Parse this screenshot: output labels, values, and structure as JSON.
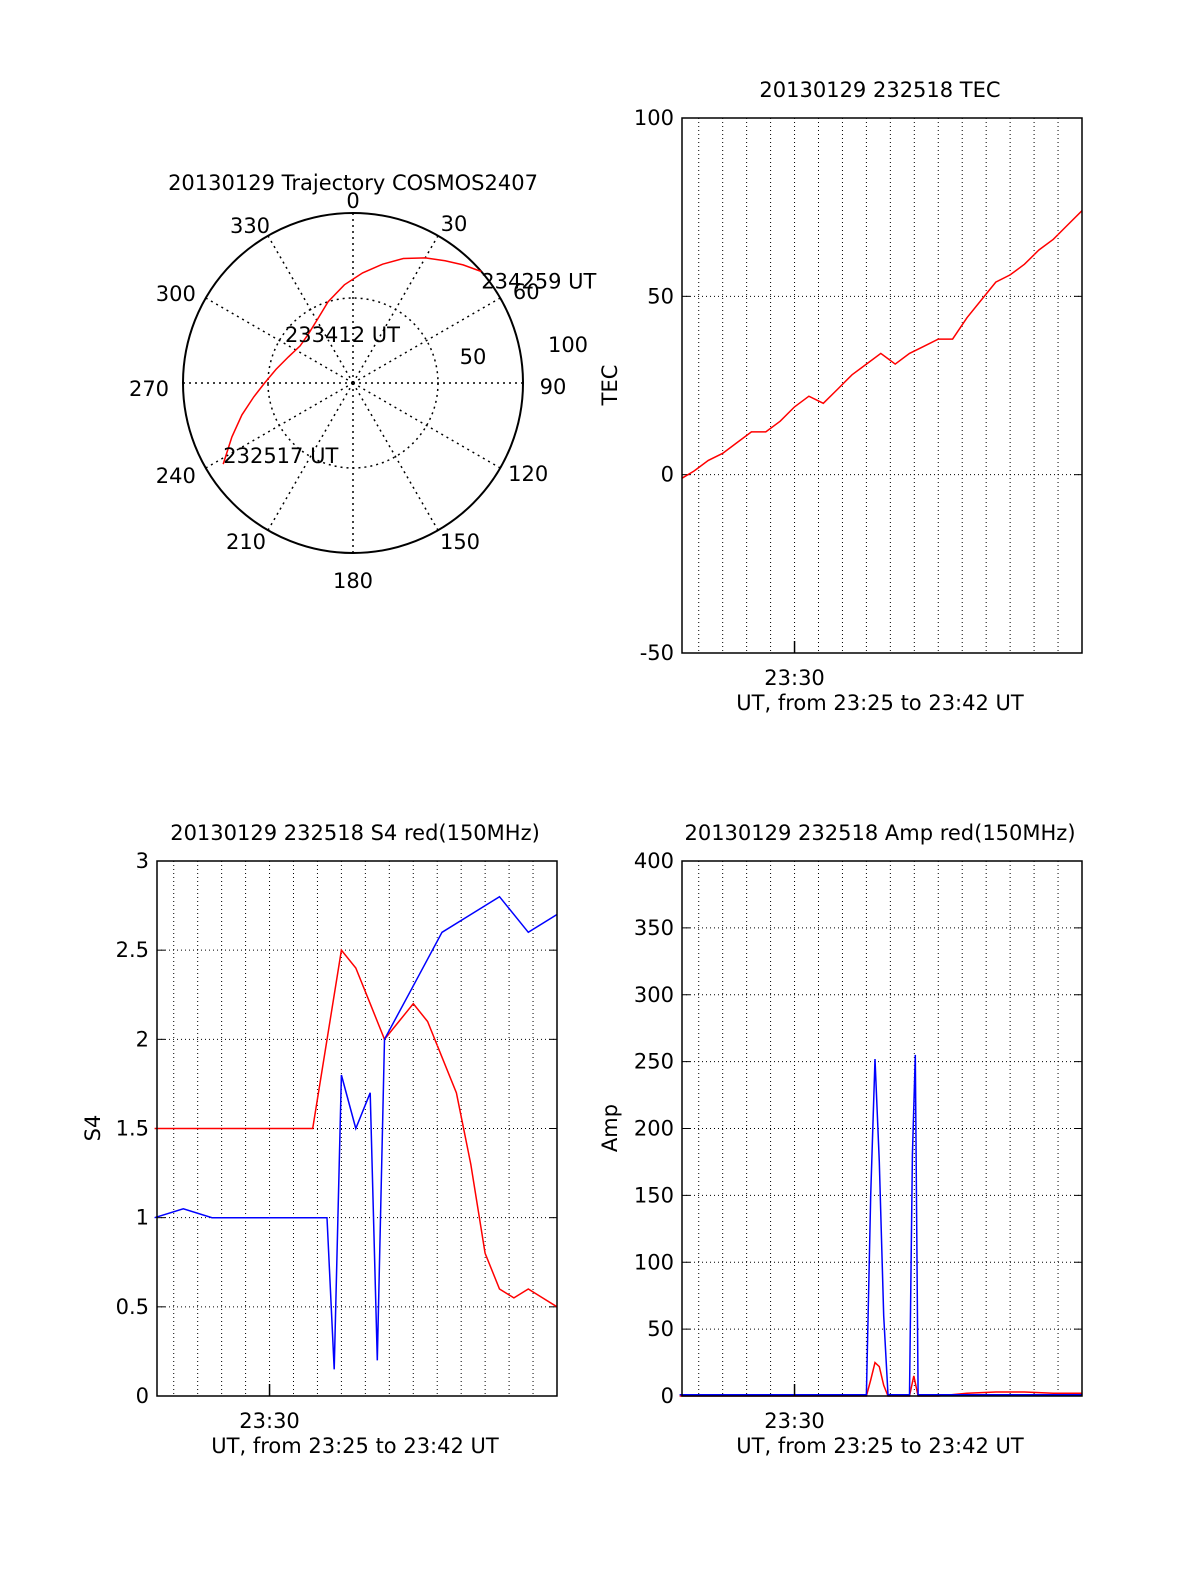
{
  "chart_data": [
    {
      "type": "polar",
      "title": "20130129 Trajectory COSMOS2407",
      "angle_labels": [
        "0",
        "30",
        "60",
        "90",
        "120",
        "150",
        "180",
        "210",
        "240",
        "270",
        "300",
        "330"
      ],
      "radial_labels": [
        "50",
        "100"
      ],
      "radial_range": [
        0,
        100
      ],
      "series": [
        {
          "color": "#ff0000",
          "points": [
            [
              238,
              90
            ],
            [
              246,
              78
            ],
            [
              254,
              68
            ],
            [
              262,
              59
            ],
            [
              270,
              52
            ],
            [
              280,
              46
            ],
            [
              292,
              41
            ],
            [
              305,
              38
            ],
            [
              318,
              39
            ],
            [
              331,
              43
            ],
            [
              343,
              50
            ],
            [
              355,
              58
            ],
            [
              5,
              65
            ],
            [
              14,
              72
            ],
            [
              22,
              79
            ],
            [
              30,
              85
            ],
            [
              37,
              90
            ],
            [
              43,
              95
            ],
            [
              49,
              100
            ]
          ]
        }
      ],
      "annotations": [
        {
          "text": "234259 UT",
          "point": [
            49,
            100
          ]
        },
        {
          "text": "233412 UT",
          "point": [
            312,
            42
          ]
        },
        {
          "text": "232517 UT",
          "point": [
            238,
            90
          ]
        }
      ],
      "grid": true
    },
    {
      "type": "line",
      "title": "20130129 232518 TEC",
      "ylabel": "TEC",
      "xlabel": "UT, from 23:25 to 23:42 UT",
      "xlim": [
        23.4217,
        23.7
      ],
      "ylim": [
        -50,
        100
      ],
      "yticks": [
        "-50",
        "0",
        "50",
        "100"
      ],
      "xticks": [
        {
          "value": 23.5,
          "label": "23:30"
        }
      ],
      "grid": true,
      "series": [
        {
          "color": "#ff0000",
          "x": [
            23.4217,
            23.43,
            23.44,
            23.45,
            23.46,
            23.47,
            23.48,
            23.49,
            23.5,
            23.51,
            23.52,
            23.53,
            23.54,
            23.55,
            23.56,
            23.57,
            23.58,
            23.59,
            23.6,
            23.61,
            23.62,
            23.63,
            23.64,
            23.65,
            23.66,
            23.67,
            23.68,
            23.69,
            23.7
          ],
          "y": [
            -1,
            1,
            4,
            6,
            9,
            12,
            12,
            15,
            19,
            22,
            20,
            24,
            28,
            31,
            34,
            31,
            34,
            36,
            38,
            38,
            44,
            49,
            54,
            56,
            59,
            63,
            66,
            70,
            74
          ]
        }
      ]
    },
    {
      "type": "line",
      "title": "20130129 232518 S4 red(150MHz)",
      "ylabel": "S4",
      "xlabel": "UT, from 23:25 to 23:42 UT",
      "xlim": [
        23.4217,
        23.7
      ],
      "ylim": [
        0,
        3
      ],
      "yticks": [
        "0",
        "0.5",
        "1",
        "1.5",
        "2",
        "2.5",
        "3"
      ],
      "xticks": [
        {
          "value": 23.5,
          "label": "23:30"
        }
      ],
      "grid": true,
      "series": [
        {
          "color": "#ff0000",
          "x": [
            23.42,
            23.445,
            23.47,
            23.49,
            23.51,
            23.53,
            23.55,
            23.56,
            23.57,
            23.58,
            23.59,
            23.6,
            23.61,
            23.62,
            23.63,
            23.64,
            23.65,
            23.66,
            23.67,
            23.68,
            23.69,
            23.7
          ],
          "y": [
            1.5,
            1.5,
            1.5,
            1.5,
            1.5,
            1.5,
            2.5,
            2.4,
            2.2,
            2.0,
            2.1,
            2.2,
            2.1,
            1.9,
            1.7,
            1.3,
            0.8,
            0.6,
            0.55,
            0.6,
            0.55,
            0.5
          ]
        },
        {
          "color": "#0000ff",
          "x": [
            23.42,
            23.44,
            23.46,
            23.48,
            23.5,
            23.52,
            23.54,
            23.545,
            23.55,
            23.56,
            23.57,
            23.575,
            23.58,
            23.6,
            23.62,
            23.64,
            23.66,
            23.68,
            23.7
          ],
          "y": [
            1.0,
            1.05,
            1.0,
            1.0,
            1.0,
            1.0,
            1.0,
            0.15,
            1.8,
            1.5,
            1.7,
            0.2,
            2.0,
            2.3,
            2.6,
            2.7,
            2.8,
            2.6,
            2.7
          ]
        }
      ]
    },
    {
      "type": "line",
      "title": "20130129 232518 Amp red(150MHz)",
      "ylabel": "Amp",
      "xlabel": "UT, from 23:25 to 23:42 UT",
      "xlim": [
        23.4217,
        23.7
      ],
      "ylim": [
        0,
        400
      ],
      "yticks": [
        "0",
        "50",
        "100",
        "150",
        "200",
        "250",
        "300",
        "350",
        "400"
      ],
      "xticks": [
        {
          "value": 23.5,
          "label": "23:30"
        }
      ],
      "grid": true,
      "series": [
        {
          "color": "#ff0000",
          "x": [
            23.42,
            23.55,
            23.553,
            23.556,
            23.559,
            23.562,
            23.565,
            23.58,
            23.583,
            23.586,
            23.6,
            23.62,
            23.64,
            23.66,
            23.68,
            23.7
          ],
          "y": [
            0,
            0,
            12,
            25,
            22,
            8,
            0,
            0,
            15,
            0,
            0,
            2,
            3,
            3,
            2,
            2
          ]
        },
        {
          "color": "#0000ff",
          "x": [
            23.42,
            23.55,
            23.553,
            23.556,
            23.559,
            23.562,
            23.565,
            23.58,
            23.582,
            23.584,
            23.586,
            23.6,
            23.62,
            23.64,
            23.66,
            23.68,
            23.7
          ],
          "y": [
            1,
            1,
            150,
            252,
            175,
            60,
            1,
            1,
            180,
            255,
            1,
            1,
            1,
            1,
            1,
            1,
            1
          ]
        }
      ]
    }
  ]
}
